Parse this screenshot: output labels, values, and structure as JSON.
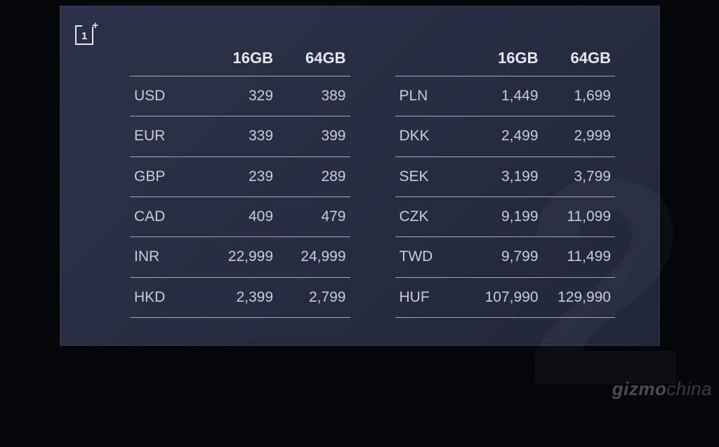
{
  "layout": {
    "frame_bg_from": "#2b3148",
    "frame_bg_to": "#212739",
    "text_color": "#e6e8ef",
    "cell_text_color": "#c8ccd9",
    "divider_color": "rgba(230,232,239,0.65)",
    "header_fontsize": 22,
    "cell_fontsize": 21,
    "watermark_glyph": "2"
  },
  "logo": {
    "name": "oneplus"
  },
  "tables": {
    "columns": [
      "16GB",
      "64GB"
    ],
    "left": {
      "rows": [
        {
          "currency": "USD",
          "v16": "329",
          "v64": "389"
        },
        {
          "currency": "EUR",
          "v16": "339",
          "v64": "399"
        },
        {
          "currency": "GBP",
          "v16": "239",
          "v64": "289"
        },
        {
          "currency": "CAD",
          "v16": "409",
          "v64": "479"
        },
        {
          "currency": "INR",
          "v16": "22,999",
          "v64": "24,999"
        },
        {
          "currency": "HKD",
          "v16": "2,399",
          "v64": "2,799"
        }
      ]
    },
    "right": {
      "rows": [
        {
          "currency": "PLN",
          "v16": "1,449",
          "v64": "1,699"
        },
        {
          "currency": "DKK",
          "v16": "2,499",
          "v64": "2,999"
        },
        {
          "currency": "SEK",
          "v16": "3,199",
          "v64": "3,799"
        },
        {
          "currency": "CZK",
          "v16": "9,199",
          "v64": "11,099"
        },
        {
          "currency": "TWD",
          "v16": "9,799",
          "v64": "11,499"
        },
        {
          "currency": "HUF",
          "v16": "107,990",
          "v64": "129,990"
        }
      ]
    }
  },
  "credit": {
    "brand": "gizmo",
    "suffix": "china"
  }
}
